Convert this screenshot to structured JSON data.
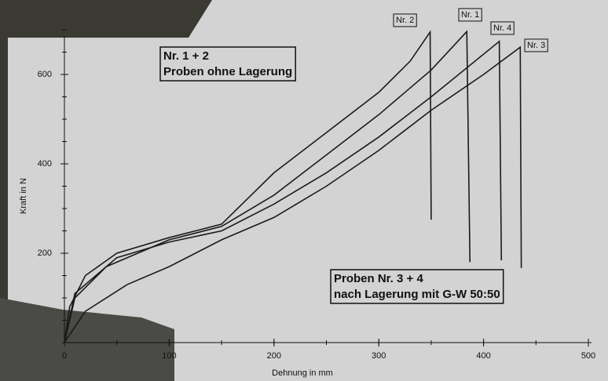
{
  "chart_data": {
    "type": "line",
    "xlabel": "Dehnung in mm",
    "ylabel": "Kraft in N",
    "xlim": [
      0,
      500
    ],
    "ylim": [
      0,
      700
    ],
    "xticks": [
      0,
      100,
      200,
      300,
      400,
      500
    ],
    "yticks": [
      200,
      400,
      600
    ],
    "annotations": [
      [
        "Nr. 1 + 2",
        "Proben ohne Lagerung"
      ],
      [
        "Proben Nr. 3 + 4",
        "nach Lagerung mit G-W 50:50"
      ]
    ],
    "series": [
      {
        "name": "Nr. 2",
        "color": "#1a1a1a",
        "x": [
          0,
          5,
          20,
          50,
          100,
          150,
          200,
          250,
          300,
          330,
          349,
          350
        ],
        "values": [
          0,
          80,
          150,
          200,
          235,
          265,
          380,
          470,
          560,
          630,
          695,
          275
        ]
      },
      {
        "name": "Nr. 1",
        "color": "#1a1a1a",
        "x": [
          0,
          10,
          40,
          100,
          150,
          200,
          250,
          300,
          350,
          384,
          387
        ],
        "values": [
          0,
          100,
          170,
          230,
          260,
          330,
          420,
          510,
          610,
          696,
          180
        ]
      },
      {
        "name": "Nr. 4",
        "color": "#1a1a1a",
        "x": [
          0,
          10,
          50,
          100,
          150,
          200,
          250,
          300,
          350,
          415,
          417
        ],
        "values": [
          0,
          110,
          190,
          225,
          250,
          310,
          380,
          460,
          550,
          674,
          184
        ]
      },
      {
        "name": "Nr. 3",
        "color": "#1a1a1a",
        "x": [
          0,
          20,
          60,
          100,
          150,
          200,
          250,
          300,
          350,
          400,
          435,
          436
        ],
        "values": [
          0,
          70,
          130,
          170,
          230,
          280,
          350,
          430,
          520,
          600,
          661,
          167
        ]
      }
    ]
  }
}
